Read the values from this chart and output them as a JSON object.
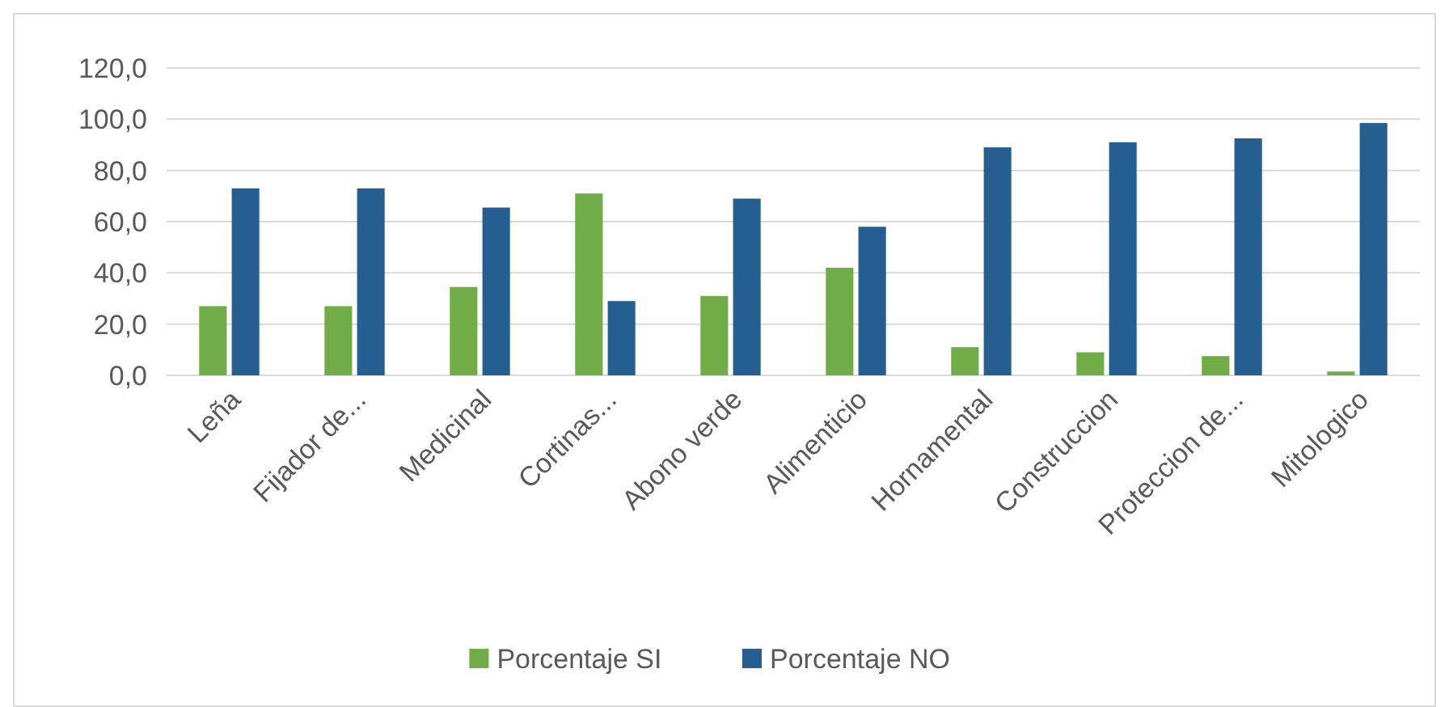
{
  "chart_data": {
    "type": "bar",
    "categories": [
      "Leña",
      "Fijador de...",
      "Medicinal",
      "Cortinas...",
      "Abono verde",
      "Alimenticio",
      "Hornamental",
      "Construccion",
      "Proteccion de...",
      "Mitologico"
    ],
    "series": [
      {
        "name": "Porcentaje SI",
        "color": "#70ad47",
        "values": [
          27,
          27,
          34.5,
          71,
          31,
          42,
          11,
          9,
          7.5,
          1.5
        ]
      },
      {
        "name": "Porcentaje NO",
        "color": "#255e91",
        "values": [
          73,
          73,
          65.5,
          29,
          69,
          58,
          89,
          91,
          92.5,
          98.5
        ]
      }
    ],
    "ylim": [
      0,
      120
    ],
    "yticks": [
      {
        "value": 0,
        "label": "0,0"
      },
      {
        "value": 20,
        "label": "20,0"
      },
      {
        "value": 40,
        "label": "40,0"
      },
      {
        "value": 60,
        "label": "60,0"
      },
      {
        "value": 80,
        "label": "80,0"
      },
      {
        "value": 100,
        "label": "100,0"
      },
      {
        "value": 120,
        "label": "120,0"
      }
    ],
    "grid": "y",
    "legend": "bottom"
  }
}
